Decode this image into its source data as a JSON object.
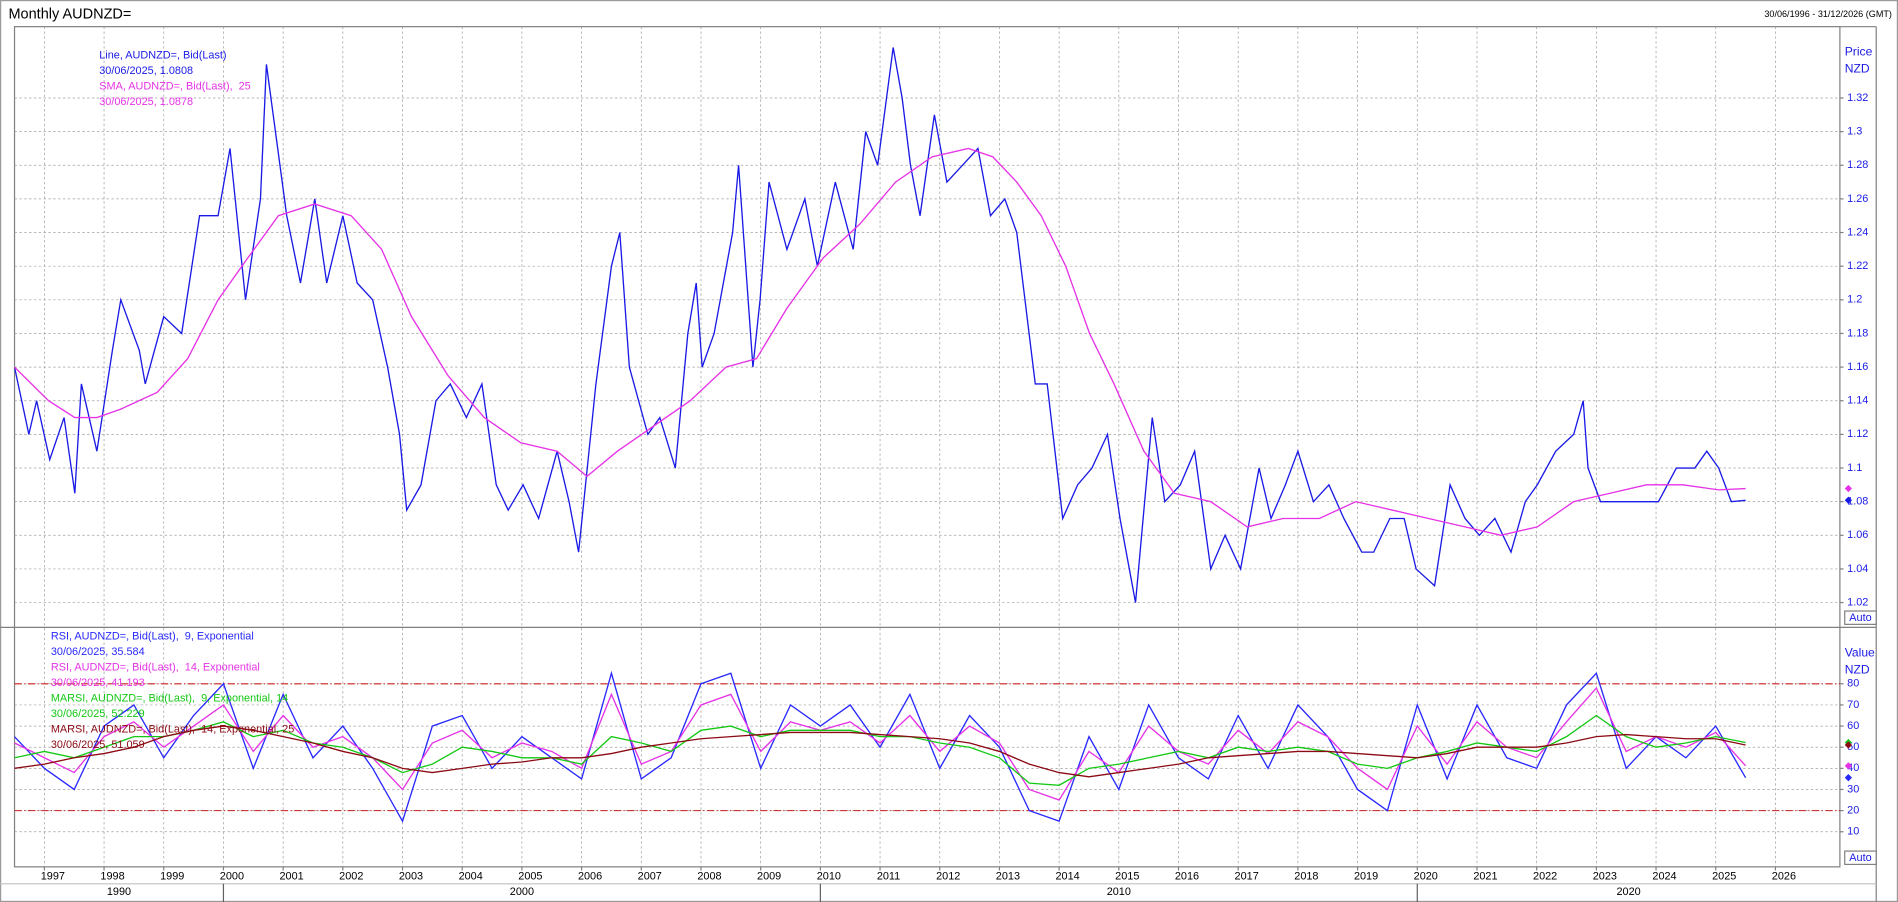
{
  "header": {
    "title": "Monthly AUDNZD=",
    "range": "30/06/1996 - 31/12/2026 (GMT)"
  },
  "chart_data": [
    {
      "type": "line",
      "axis_labels": [
        "Price",
        "NZD"
      ],
      "auto_label": "Auto",
      "xlim": [
        1996.5,
        2027.08
      ],
      "ylim": [
        1.0056,
        1.3624
      ],
      "yticks": [
        1.02,
        1.04,
        1.06,
        1.08,
        1.1,
        1.12,
        1.14,
        1.16,
        1.18,
        1.2,
        1.22,
        1.24,
        1.26,
        1.28,
        1.3,
        1.32
      ],
      "grid": true,
      "legend": "upper left",
      "series": [
        {
          "name": "Line, AUDNZD=, Bid(Last)",
          "last": "30/06/2025, 1.0808",
          "color": "#1a1ae6",
          "x": [
            1996.5,
            1996.74,
            1996.87,
            1997.09,
            1997.33,
            1997.51,
            1997.62,
            1997.88,
            1998.14,
            1998.28,
            1998.59,
            1998.69,
            1999.0,
            1999.3,
            1999.6,
            1999.91,
            2000.11,
            2000.37,
            2000.62,
            2000.72,
            2001.06,
            2001.29,
            2001.53,
            2001.73,
            2002.0,
            2002.24,
            2002.5,
            2002.75,
            2002.95,
            2003.07,
            2003.31,
            2003.56,
            2003.8,
            2004.07,
            2004.33,
            2004.57,
            2004.77,
            2005.02,
            2005.28,
            2005.59,
            2005.79,
            2005.95,
            2006.24,
            2006.5,
            2006.64,
            2006.8,
            2007.11,
            2007.31,
            2007.57,
            2007.78,
            2007.92,
            2008.02,
            2008.22,
            2008.53,
            2008.63,
            2008.87,
            2008.99,
            2009.14,
            2009.44,
            2009.74,
            2009.95,
            2010.25,
            2010.55,
            2010.76,
            2010.96,
            2011.22,
            2011.37,
            2011.51,
            2011.67,
            2011.91,
            2012.12,
            2012.38,
            2012.64,
            2012.85,
            2013.09,
            2013.29,
            2013.6,
            2013.8,
            2014.06,
            2014.31,
            2014.55,
            2014.81,
            2015.02,
            2015.28,
            2015.56,
            2015.77,
            2016.03,
            2016.27,
            2016.54,
            2016.78,
            2017.04,
            2017.35,
            2017.55,
            2017.79,
            2018.0,
            2018.26,
            2018.52,
            2018.77,
            2019.07,
            2019.27,
            2019.54,
            2019.78,
            2019.98,
            2020.29,
            2020.55,
            2020.8,
            2021.04,
            2021.3,
            2021.57,
            2021.81,
            2022.01,
            2022.32,
            2022.62,
            2022.78,
            2022.86,
            2023.07,
            2023.33,
            2023.59,
            2023.84,
            2024.04,
            2024.34,
            2024.65,
            2024.85,
            2025.05,
            2025.26,
            2025.5
          ],
          "values": [
            1.16,
            1.12,
            1.14,
            1.105,
            1.13,
            1.085,
            1.15,
            1.11,
            1.17,
            1.2,
            1.17,
            1.15,
            1.19,
            1.18,
            1.25,
            1.25,
            1.29,
            1.2,
            1.26,
            1.34,
            1.25,
            1.21,
            1.26,
            1.21,
            1.25,
            1.21,
            1.2,
            1.16,
            1.12,
            1.075,
            1.09,
            1.14,
            1.15,
            1.13,
            1.15,
            1.09,
            1.075,
            1.09,
            1.07,
            1.11,
            1.08,
            1.05,
            1.15,
            1.22,
            1.24,
            1.16,
            1.12,
            1.13,
            1.1,
            1.18,
            1.21,
            1.16,
            1.18,
            1.24,
            1.28,
            1.16,
            1.2,
            1.27,
            1.23,
            1.26,
            1.22,
            1.27,
            1.23,
            1.3,
            1.28,
            1.35,
            1.32,
            1.28,
            1.25,
            1.31,
            1.27,
            1.28,
            1.29,
            1.25,
            1.26,
            1.24,
            1.15,
            1.15,
            1.07,
            1.09,
            1.1,
            1.12,
            1.07,
            1.02,
            1.13,
            1.08,
            1.09,
            1.11,
            1.04,
            1.06,
            1.04,
            1.1,
            1.07,
            1.09,
            1.11,
            1.08,
            1.09,
            1.07,
            1.05,
            1.05,
            1.07,
            1.07,
            1.04,
            1.03,
            1.09,
            1.07,
            1.06,
            1.07,
            1.05,
            1.08,
            1.09,
            1.11,
            1.12,
            1.14,
            1.1,
            1.08,
            1.08,
            1.08,
            1.08,
            1.08,
            1.1,
            1.1,
            1.11,
            1.1,
            1.08,
            1.0808
          ]
        },
        {
          "name": "SMA, AUDNZD=, Bid(Last),  25",
          "last": "30/06/2025, 1.0878",
          "color": "#e632e6",
          "x": [
            1996.5,
            1997.07,
            1997.51,
            1997.88,
            1998.28,
            1998.89,
            1999.4,
            1999.91,
            2000.41,
            2000.92,
            2001.53,
            2002.14,
            2002.65,
            2003.15,
            2003.76,
            2004.37,
            2004.98,
            2005.59,
            2006.09,
            2006.6,
            2007.21,
            2007.82,
            2008.42,
            2008.93,
            2009.44,
            2010.05,
            2010.66,
            2011.26,
            2011.87,
            2012.48,
            2012.89,
            2013.29,
            2013.7,
            2014.11,
            2014.51,
            2014.92,
            2015.42,
            2015.93,
            2016.54,
            2017.15,
            2017.75,
            2018.36,
            2018.97,
            2019.58,
            2020.19,
            2020.8,
            2021.4,
            2022.01,
            2022.62,
            2023.23,
            2023.84,
            2024.45,
            2025.05,
            2025.5
          ],
          "values": [
            1.16,
            1.14,
            1.13,
            1.13,
            1.135,
            1.145,
            1.165,
            1.2,
            1.225,
            1.25,
            1.257,
            1.25,
            1.23,
            1.19,
            1.155,
            1.13,
            1.115,
            1.11,
            1.095,
            1.11,
            1.125,
            1.14,
            1.16,
            1.165,
            1.195,
            1.225,
            1.245,
            1.27,
            1.285,
            1.29,
            1.285,
            1.27,
            1.25,
            1.22,
            1.18,
            1.15,
            1.11,
            1.085,
            1.08,
            1.065,
            1.07,
            1.07,
            1.08,
            1.075,
            1.07,
            1.065,
            1.06,
            1.065,
            1.08,
            1.085,
            1.09,
            1.09,
            1.087,
            1.0878
          ]
        }
      ]
    },
    {
      "type": "line",
      "axis_labels": [
        "Value",
        "NZD"
      ],
      "auto_label": "Auto",
      "xlim": [
        1996.5,
        2027.08
      ],
      "ylim": [
        -6.6,
        106.4
      ],
      "yticks": [
        10,
        20,
        30,
        40,
        50,
        60,
        70,
        80
      ],
      "xticks": [
        1997,
        1998,
        1999,
        2000,
        2001,
        2002,
        2003,
        2004,
        2005,
        2006,
        2007,
        2008,
        2009,
        2010,
        2011,
        2012,
        2013,
        2014,
        2015,
        2016,
        2017,
        2018,
        2019,
        2020,
        2021,
        2022,
        2023,
        2024,
        2025,
        2026
      ],
      "decade_ticks": [
        1990,
        2000,
        2010,
        2020
      ],
      "levels": [
        20,
        80
      ],
      "level_color": "#c81e1e",
      "grid": true,
      "legend": "upper left",
      "x": [
        1996.5,
        1997.0,
        1997.5,
        1998.0,
        1998.5,
        1999.0,
        1999.5,
        2000.0,
        2000.5,
        2001.0,
        2001.5,
        2002.0,
        2002.5,
        2003.0,
        2003.5,
        2004.0,
        2004.5,
        2005.0,
        2005.5,
        2006.0,
        2006.5,
        2007.0,
        2007.5,
        2008.0,
        2008.5,
        2009.0,
        2009.5,
        2010.0,
        2010.5,
        2011.0,
        2011.5,
        2012.0,
        2012.5,
        2013.0,
        2013.5,
        2014.0,
        2014.5,
        2015.0,
        2015.5,
        2016.0,
        2016.5,
        2017.0,
        2017.5,
        2018.0,
        2018.5,
        2019.0,
        2019.5,
        2020.0,
        2020.5,
        2021.0,
        2021.5,
        2022.0,
        2022.5,
        2023.0,
        2023.5,
        2024.0,
        2024.5,
        2025.0,
        2025.5
      ],
      "series": [
        {
          "name": "RSI, AUDNZD=, Bid(Last),  9, Exponential",
          "last": "30/06/2025, 35.584",
          "color": "#2828ff",
          "values": [
            55,
            40,
            30,
            60,
            70,
            45,
            65,
            80,
            40,
            75,
            45,
            60,
            40,
            15,
            60,
            65,
            40,
            55,
            45,
            35,
            85,
            35,
            45,
            80,
            85,
            40,
            70,
            60,
            70,
            50,
            75,
            40,
            65,
            50,
            20,
            15,
            55,
            30,
            70,
            45,
            35,
            65,
            40,
            70,
            55,
            30,
            20,
            70,
            35,
            70,
            45,
            40,
            70,
            85,
            40,
            55,
            45,
            60,
            35.584
          ]
        },
        {
          "name": "RSI, AUDNZD=, Bid(Last),  14, Exponential",
          "last": "30/06/2025, 41.193",
          "color": "#e632e6",
          "values": [
            52,
            45,
            38,
            55,
            62,
            50,
            60,
            70,
            48,
            65,
            50,
            55,
            45,
            30,
            52,
            58,
            45,
            52,
            48,
            40,
            75,
            42,
            48,
            70,
            75,
            48,
            62,
            58,
            62,
            52,
            65,
            48,
            60,
            52,
            30,
            25,
            48,
            38,
            60,
            48,
            42,
            58,
            47,
            62,
            55,
            40,
            30,
            60,
            42,
            62,
            50,
            45,
            62,
            78,
            48,
            55,
            50,
            57,
            41.193
          ]
        },
        {
          "name": "MARSI, AUDNZD=, Bid(Last),  9, Exponential, 14",
          "last": "30/06/2025, 52.229",
          "color": "#14c814",
          "values": [
            45,
            48,
            45,
            50,
            55,
            55,
            58,
            62,
            55,
            58,
            52,
            50,
            45,
            38,
            42,
            50,
            48,
            45,
            45,
            42,
            55,
            52,
            48,
            58,
            60,
            55,
            58,
            58,
            58,
            55,
            55,
            52,
            50,
            45,
            33,
            32,
            40,
            42,
            45,
            48,
            45,
            50,
            48,
            50,
            48,
            42,
            40,
            45,
            48,
            52,
            50,
            48,
            55,
            65,
            55,
            50,
            52,
            55,
            52.229
          ]
        },
        {
          "name": "MARSI, AUDNZD=, Bid(Last),  14, Exponential, 25",
          "last": "30/06/2025, 51.059",
          "color": "#8c0a14",
          "values": [
            40,
            42,
            45,
            47,
            50,
            55,
            58,
            60,
            58,
            55,
            52,
            48,
            45,
            40,
            38,
            40,
            42,
            43,
            45,
            45,
            47,
            50,
            52,
            54,
            55,
            56,
            57,
            57,
            57,
            56,
            55,
            54,
            52,
            48,
            42,
            38,
            36,
            38,
            40,
            42,
            45,
            46,
            47,
            48,
            48,
            47,
            46,
            45,
            47,
            50,
            50,
            50,
            52,
            55,
            56,
            55,
            54,
            54,
            51.059
          ]
        }
      ]
    }
  ]
}
